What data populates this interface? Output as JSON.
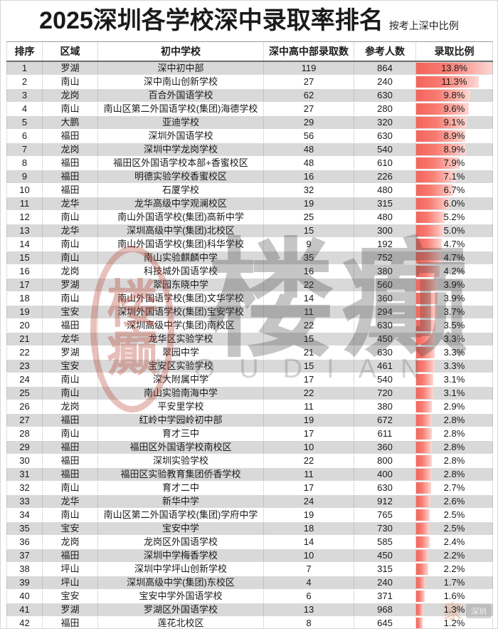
{
  "page": {
    "title": "2025深圳各学校深中录取率排名",
    "subtitle": "按考上深中比例"
  },
  "table": {
    "headers": [
      "排序",
      "区域",
      "初中学校",
      "深中高中部录取数",
      "参考人数",
      "录取比例"
    ],
    "rows": [
      {
        "rank": 1,
        "district": "罗湖",
        "school": "深中初中部",
        "admitted": 119,
        "examinees": 864,
        "ratio": "13.8%"
      },
      {
        "rank": 2,
        "district": "南山",
        "school": "深中南山创新学校",
        "admitted": 27,
        "examinees": 240,
        "ratio": "11.3%"
      },
      {
        "rank": 3,
        "district": "龙岗",
        "school": "百合外国语学校",
        "admitted": 62,
        "examinees": 630,
        "ratio": "9.8%"
      },
      {
        "rank": 4,
        "district": "南山",
        "school": "南山区第二外国语学校(集团)海德学校",
        "admitted": 27,
        "examinees": 280,
        "ratio": "9.6%"
      },
      {
        "rank": 5,
        "district": "大鹏",
        "school": "亚迪学校",
        "admitted": 29,
        "examinees": 320,
        "ratio": "9.1%"
      },
      {
        "rank": 6,
        "district": "福田",
        "school": "深圳外国语学校",
        "admitted": 56,
        "examinees": 630,
        "ratio": "8.9%"
      },
      {
        "rank": 7,
        "district": "龙岗",
        "school": "深圳中学龙岗学校",
        "admitted": 48,
        "examinees": 540,
        "ratio": "8.9%"
      },
      {
        "rank": 8,
        "district": "福田",
        "school": "福田区外国语学校本部+香蜜校区",
        "admitted": 48,
        "examinees": 610,
        "ratio": "7.9%"
      },
      {
        "rank": 9,
        "district": "福田",
        "school": "明德实验学校香蜜校区",
        "admitted": 16,
        "examinees": 226,
        "ratio": "7.1%"
      },
      {
        "rank": 10,
        "district": "福田",
        "school": "石厦学校",
        "admitted": 32,
        "examinees": 480,
        "ratio": "6.7%"
      },
      {
        "rank": 11,
        "district": "龙华",
        "school": "龙华高级中学观澜校区",
        "admitted": 19,
        "examinees": 315,
        "ratio": "6.0%"
      },
      {
        "rank": 12,
        "district": "南山",
        "school": "南山外国语学校(集团)高新中学",
        "admitted": 25,
        "examinees": 480,
        "ratio": "5.2%"
      },
      {
        "rank": 13,
        "district": "龙华",
        "school": "深圳高级中学(集团)北校区",
        "admitted": 15,
        "examinees": 300,
        "ratio": "5.0%"
      },
      {
        "rank": 14,
        "district": "南山",
        "school": "南山外国语学校(集团)科华学校",
        "admitted": 9,
        "examinees": 192,
        "ratio": "4.7%"
      },
      {
        "rank": 15,
        "district": "南山",
        "school": "南山实验麒麟中学",
        "admitted": 35,
        "examinees": 752,
        "ratio": "4.7%"
      },
      {
        "rank": 16,
        "district": "龙岗",
        "school": "科技城外国语学校",
        "admitted": 16,
        "examinees": 380,
        "ratio": "4.2%"
      },
      {
        "rank": 17,
        "district": "罗湖",
        "school": "翠园东晓中学",
        "admitted": 22,
        "examinees": 560,
        "ratio": "3.9%"
      },
      {
        "rank": 18,
        "district": "南山",
        "school": "南山外国语学校(集团)文华学校",
        "admitted": 14,
        "examinees": 360,
        "ratio": "3.9%"
      },
      {
        "rank": 19,
        "district": "宝安",
        "school": "深圳外国语学校(集团)宝安学校",
        "admitted": 11,
        "examinees": 294,
        "ratio": "3.7%"
      },
      {
        "rank": 20,
        "district": "福田",
        "school": "深圳高级中学(集团)南校区",
        "admitted": 22,
        "examinees": 630,
        "ratio": "3.5%"
      },
      {
        "rank": 21,
        "district": "龙华",
        "school": "龙华区实验学校",
        "admitted": 15,
        "examinees": 450,
        "ratio": "3.3%"
      },
      {
        "rank": 22,
        "district": "罗湖",
        "school": "翠园中学",
        "admitted": 21,
        "examinees": 630,
        "ratio": "3.3%"
      },
      {
        "rank": 23,
        "district": "宝安",
        "school": "宝安区实验学校",
        "admitted": 15,
        "examinees": 461,
        "ratio": "3.3%"
      },
      {
        "rank": 24,
        "district": "南山",
        "school": "深大附属中学",
        "admitted": 17,
        "examinees": 540,
        "ratio": "3.1%"
      },
      {
        "rank": 25,
        "district": "南山",
        "school": "南山实验南海中学",
        "admitted": 22,
        "examinees": 720,
        "ratio": "3.1%"
      },
      {
        "rank": 26,
        "district": "龙岗",
        "school": "平安里学校",
        "admitted": 11,
        "examinees": 380,
        "ratio": "2.9%"
      },
      {
        "rank": 27,
        "district": "福田",
        "school": "红岭中学园岭初中部",
        "admitted": 19,
        "examinees": 672,
        "ratio": "2.8%"
      },
      {
        "rank": 28,
        "district": "南山",
        "school": "育才三中",
        "admitted": 17,
        "examinees": 611,
        "ratio": "2.8%"
      },
      {
        "rank": 29,
        "district": "福田",
        "school": "福田区外国语学校南校区",
        "admitted": 10,
        "examinees": 360,
        "ratio": "2.8%"
      },
      {
        "rank": 30,
        "district": "福田",
        "school": "深圳实验学校",
        "admitted": 22,
        "examinees": 800,
        "ratio": "2.8%"
      },
      {
        "rank": 31,
        "district": "福田",
        "school": "福田区实验教育集团侨香学校",
        "admitted": 11,
        "examinees": 400,
        "ratio": "2.8%"
      },
      {
        "rank": 32,
        "district": "南山",
        "school": "育才二中",
        "admitted": 17,
        "examinees": 630,
        "ratio": "2.7%"
      },
      {
        "rank": 33,
        "district": "龙华",
        "school": "新华中学",
        "admitted": 24,
        "examinees": 912,
        "ratio": "2.6%"
      },
      {
        "rank": 34,
        "district": "南山",
        "school": "南山区第二外国语学校(集团)学府中学",
        "admitted": 19,
        "examinees": 765,
        "ratio": "2.5%"
      },
      {
        "rank": 35,
        "district": "宝安",
        "school": "宝安中学",
        "admitted": 18,
        "examinees": 730,
        "ratio": "2.5%"
      },
      {
        "rank": 36,
        "district": "龙岗",
        "school": "龙岗区外国语学校",
        "admitted": 14,
        "examinees": 585,
        "ratio": "2.4%"
      },
      {
        "rank": 37,
        "district": "福田",
        "school": "深圳中学梅香学校",
        "admitted": 10,
        "examinees": 450,
        "ratio": "2.2%"
      },
      {
        "rank": 38,
        "district": "坪山",
        "school": "深圳中学坪山创新学校",
        "admitted": 7,
        "examinees": 315,
        "ratio": "2.2%"
      },
      {
        "rank": 39,
        "district": "坪山",
        "school": "深圳高级中学(集团)东校区",
        "admitted": 4,
        "examinees": 240,
        "ratio": "1.7%"
      },
      {
        "rank": 40,
        "district": "宝安",
        "school": "宝安中学外国语学校",
        "admitted": 6,
        "examinees": 371,
        "ratio": "1.6%"
      },
      {
        "rank": 41,
        "district": "罗湖",
        "school": "罗湖区外国语学校",
        "admitted": 13,
        "examinees": 968,
        "ratio": "1.3%"
      },
      {
        "rank": 42,
        "district": "福田",
        "school": "莲花北校区",
        "admitted": 8,
        "examinees": 645,
        "ratio": "1.2%"
      }
    ]
  },
  "watermarks": {
    "seal_char_top": "楼",
    "seal_char_bottom": "癫",
    "brand_text": "楼癫",
    "latin_text": "LOUDIAN",
    "corner_glyph": "家",
    "corner_badge": "深圳"
  },
  "colors": {
    "bar_red": "#f4645a",
    "bar_fade": "#fdd8d4",
    "row_alt": "#d9d9d9",
    "seal_red": "#b93e2f"
  }
}
